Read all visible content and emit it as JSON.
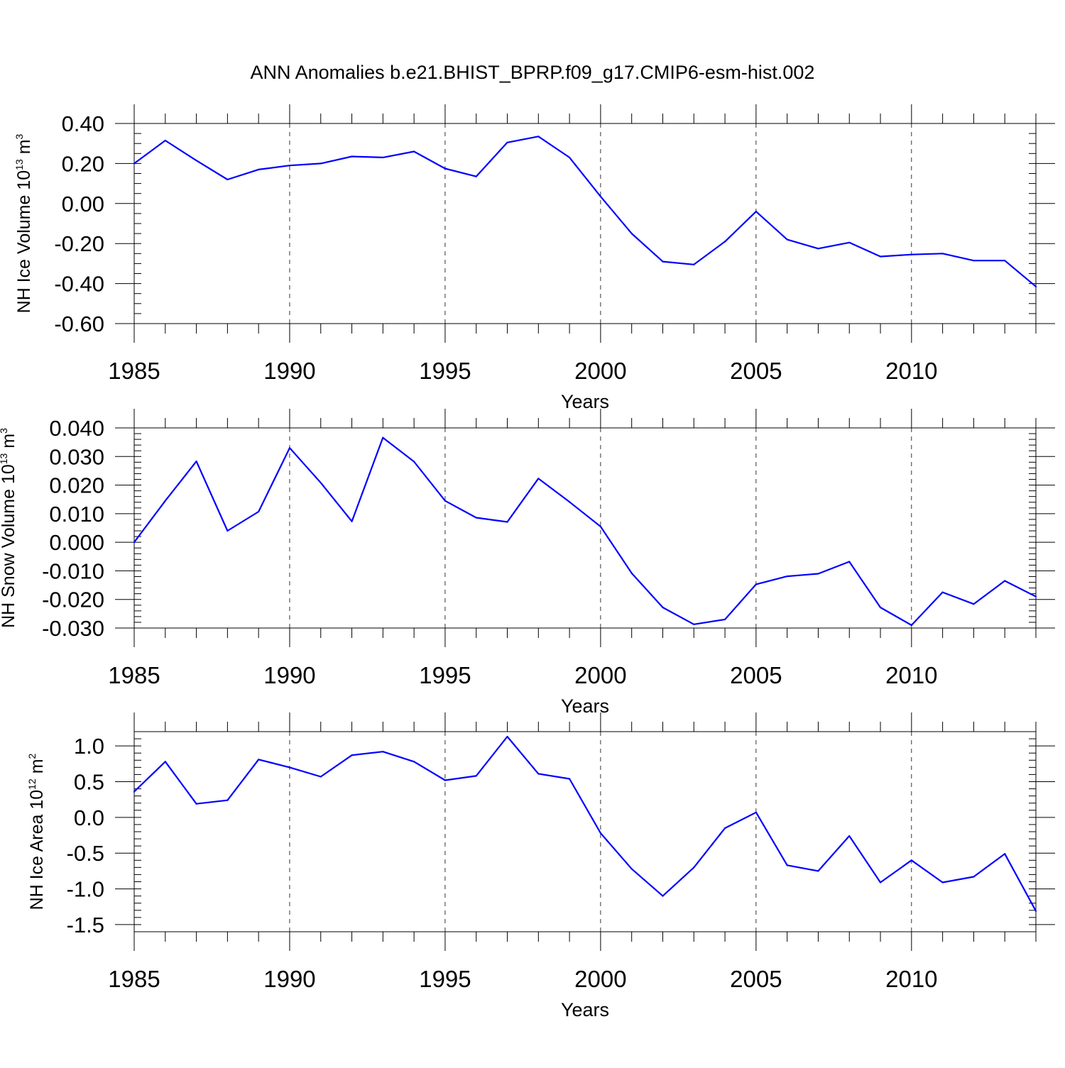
{
  "title": "ANN Anomalies b.e21.BHIST_BPRP.f09_g17.CMIP6-esm-hist.002",
  "line_color": "#0000ff",
  "chart_data": [
    {
      "type": "line",
      "xlabel": "Years",
      "ylabel": {
        "text": "NH Ice Volume 10",
        "sup": "13",
        "unit": " m",
        "unit_sup": "3"
      },
      "xlim": [
        1985,
        2014
      ],
      "ylim": [
        -0.6,
        0.4
      ],
      "x_ticks": [
        1985,
        1990,
        1995,
        2000,
        2005,
        2010
      ],
      "y_ticks": [
        "0.40",
        "0.20",
        "0.00",
        "-0.20",
        "-0.40",
        "-0.60"
      ],
      "y_tick_values": [
        0.4,
        0.2,
        0.0,
        -0.2,
        -0.4,
        -0.6
      ],
      "y_minor_step": 0.05,
      "x": [
        1985,
        1986,
        1987,
        1988,
        1989,
        1990,
        1991,
        1992,
        1993,
        1994,
        1995,
        1996,
        1997,
        1998,
        1999,
        2000,
        2001,
        2002,
        2003,
        2004,
        2005,
        2006,
        2007,
        2008,
        2009,
        2010,
        2011,
        2012,
        2013,
        2014
      ],
      "values": [
        0.2,
        0.315,
        0.215,
        0.12,
        0.17,
        0.19,
        0.2,
        0.235,
        0.23,
        0.26,
        0.175,
        0.135,
        0.305,
        0.335,
        0.23,
        0.035,
        -0.15,
        -0.29,
        -0.305,
        -0.19,
        -0.04,
        -0.18,
        -0.225,
        -0.195,
        -0.265,
        -0.255,
        -0.25,
        -0.285,
        -0.285,
        -0.415
      ]
    },
    {
      "type": "line",
      "xlabel": "Years",
      "ylabel": {
        "text": "NH Snow Volume 10",
        "sup": "13",
        "unit": " m",
        "unit_sup": "3"
      },
      "xlim": [
        1985,
        2014
      ],
      "ylim": [
        -0.03,
        0.04
      ],
      "x_ticks": [
        1985,
        1990,
        1995,
        2000,
        2005,
        2010
      ],
      "y_ticks": [
        "0.040",
        "0.030",
        "0.020",
        "0.010",
        "0.000",
        "-0.010",
        "-0.020",
        "-0.030"
      ],
      "y_tick_values": [
        0.04,
        0.03,
        0.02,
        0.01,
        0.0,
        -0.01,
        -0.02,
        -0.03
      ],
      "y_minor_step": 0.002,
      "x": [
        1985,
        1986,
        1987,
        1988,
        1989,
        1990,
        1991,
        1992,
        1993,
        1994,
        1995,
        1996,
        1997,
        1998,
        1999,
        2000,
        2001,
        2002,
        2003,
        2004,
        2005,
        2006,
        2007,
        2008,
        2009,
        2010,
        2011,
        2012,
        2013,
        2014
      ],
      "values": [
        0.0,
        0.0145,
        0.0283,
        0.004,
        0.0107,
        0.033,
        0.0208,
        0.0073,
        0.0366,
        0.0282,
        0.0145,
        0.0086,
        0.0071,
        0.0223,
        0.0141,
        0.0055,
        -0.0108,
        -0.0228,
        -0.0287,
        -0.027,
        -0.0147,
        -0.0119,
        -0.011,
        -0.0068,
        -0.0228,
        -0.029,
        -0.0175,
        -0.0216,
        -0.0135,
        -0.019
      ]
    },
    {
      "type": "line",
      "xlabel": "Years",
      "ylabel": {
        "text": "NH Ice Area 10",
        "sup": "12",
        "unit": " m",
        "unit_sup": "2"
      },
      "xlim": [
        1985,
        2014
      ],
      "ylim": [
        -1.6,
        1.2
      ],
      "x_ticks": [
        1985,
        1990,
        1995,
        2000,
        2005,
        2010
      ],
      "y_ticks": [
        "1.0",
        "0.5",
        "0.0",
        "-0.5",
        "-1.0",
        "-1.5"
      ],
      "y_tick_values": [
        1.0,
        0.5,
        0.0,
        -0.5,
        -1.0,
        -1.5
      ],
      "y_minor_step": 0.1,
      "x": [
        1985,
        1986,
        1987,
        1988,
        1989,
        1990,
        1991,
        1992,
        1993,
        1994,
        1995,
        1996,
        1997,
        1998,
        1999,
        2000,
        2001,
        2002,
        2003,
        2004,
        2005,
        2006,
        2007,
        2008,
        2009,
        2010,
        2011,
        2012,
        2013,
        2014
      ],
      "values": [
        0.36,
        0.78,
        0.19,
        0.24,
        0.81,
        0.7,
        0.57,
        0.87,
        0.92,
        0.78,
        0.52,
        0.58,
        1.13,
        0.61,
        0.54,
        -0.22,
        -0.72,
        -1.1,
        -0.7,
        -0.15,
        0.07,
        -0.67,
        -0.75,
        -0.26,
        -0.91,
        -0.6,
        -0.91,
        -0.83,
        -0.51,
        -1.31
      ]
    }
  ]
}
